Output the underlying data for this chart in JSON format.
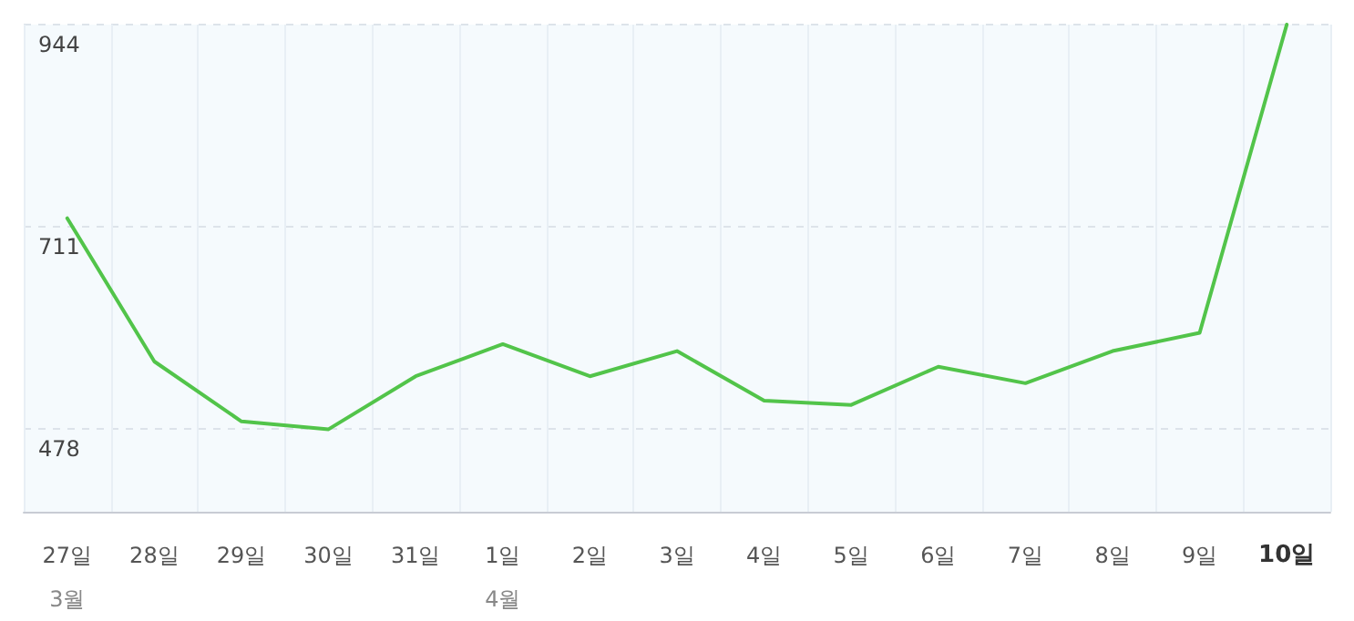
{
  "chart_data": {
    "type": "line",
    "categories": [
      "27일\n3월",
      "28일",
      "29일",
      "30일",
      "31일",
      "1일\n4월",
      "2일",
      "3일",
      "4일",
      "5일",
      "6일",
      "7일",
      "8일",
      "9일",
      "10일"
    ],
    "series": [
      {
        "color": "#52c44a",
        "values": [
          721,
          556,
          487,
          478,
          539,
          576,
          539,
          568,
          511,
          506,
          550,
          531,
          568,
          589,
          944
        ]
      }
    ],
    "ylim": [
      383,
      944
    ],
    "yticks": [
      478,
      711,
      944
    ],
    "grid": true,
    "marker": "none",
    "line_style": "solid"
  }
}
